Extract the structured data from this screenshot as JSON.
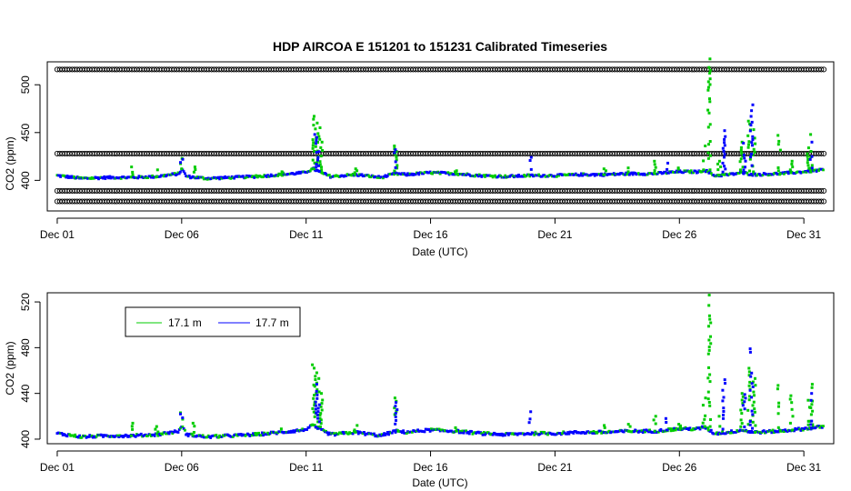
{
  "title": "HDP   AIRCOA  E   151201  to  151231   Calibrated Timeseries",
  "colors": {
    "green": "#00cc00",
    "blue": "#0000ff",
    "black": "#000000"
  },
  "chart_data": [
    {
      "type": "scatter",
      "xlabel": "Date (UTC)",
      "ylabel": "CO2 (ppm)",
      "x_ticks": [
        "Dec 01",
        "Dec 06",
        "Dec 11",
        "Dec 16",
        "Dec 21",
        "Dec 26",
        "Dec 31"
      ],
      "x_tick_days": [
        1,
        6,
        11,
        16,
        21,
        26,
        31
      ],
      "xlim": [
        0.6,
        32.2
      ],
      "y_ticks": [
        400,
        450,
        500
      ],
      "ylim": [
        368,
        524
      ],
      "reference_levels": [
        516,
        428,
        389,
        378
      ],
      "baseline": [
        [
          1,
          405
        ],
        [
          2,
          402
        ],
        [
          3,
          403
        ],
        [
          4,
          403
        ],
        [
          5,
          404
        ],
        [
          5.9,
          407
        ],
        [
          6,
          412
        ],
        [
          6.2,
          404
        ],
        [
          7,
          402
        ],
        [
          8,
          403
        ],
        [
          9,
          404
        ],
        [
          10,
          406
        ],
        [
          10.9,
          408
        ],
        [
          11.3,
          412
        ],
        [
          11.6,
          408
        ],
        [
          12,
          404
        ],
        [
          13,
          406
        ],
        [
          14,
          403
        ],
        [
          14.6,
          407
        ],
        [
          15,
          406
        ],
        [
          16,
          408
        ],
        [
          17,
          407
        ],
        [
          18,
          405
        ],
        [
          19,
          404
        ],
        [
          20,
          405
        ],
        [
          21,
          405
        ],
        [
          22,
          406
        ],
        [
          23,
          406
        ],
        [
          24,
          407
        ],
        [
          25,
          407
        ],
        [
          26,
          409
        ],
        [
          26.8,
          409
        ],
        [
          27,
          411
        ],
        [
          27.4,
          405
        ],
        [
          28,
          406
        ],
        [
          28.5,
          408
        ],
        [
          29,
          406
        ],
        [
          30,
          407
        ],
        [
          31,
          409
        ],
        [
          31.8,
          411
        ]
      ],
      "spikes_green": [
        [
          4,
          414
        ],
        [
          5,
          411
        ],
        [
          6,
          423
        ],
        [
          6.5,
          414
        ],
        [
          9,
          405
        ],
        [
          10,
          409
        ],
        [
          11.3,
          467
        ],
        [
          11.4,
          460
        ],
        [
          11.5,
          455
        ],
        [
          11.6,
          440
        ],
        [
          13,
          412
        ],
        [
          14.6,
          436
        ],
        [
          17,
          410
        ],
        [
          23,
          412
        ],
        [
          24,
          413
        ],
        [
          25,
          420
        ],
        [
          26,
          413
        ],
        [
          27,
          436
        ],
        [
          27.2,
          527
        ],
        [
          27.6,
          420
        ],
        [
          28.5,
          440
        ],
        [
          28.8,
          462
        ],
        [
          29,
          453
        ],
        [
          30,
          447
        ],
        [
          30.5,
          420
        ],
        [
          31.2,
          434
        ],
        [
          31.3,
          448
        ]
      ],
      "spikes_blue": [
        [
          6,
          422
        ],
        [
          11.4,
          448
        ],
        [
          11.5,
          430
        ],
        [
          14.6,
          432
        ],
        [
          20,
          424
        ],
        [
          25.5,
          418
        ],
        [
          27.8,
          452
        ],
        [
          28.6,
          439
        ],
        [
          28.9,
          479
        ],
        [
          31.3,
          440
        ]
      ]
    },
    {
      "type": "scatter",
      "xlabel": "Date (UTC)",
      "ylabel": "CO2 (ppm)",
      "x_ticks": [
        "Dec 01",
        "Dec 06",
        "Dec 11",
        "Dec 16",
        "Dec 21",
        "Dec 26",
        "Dec 31"
      ],
      "x_tick_days": [
        1,
        6,
        11,
        16,
        21,
        26,
        31
      ],
      "xlim": [
        0.6,
        32.2
      ],
      "y_ticks": [
        400,
        440,
        480,
        520
      ],
      "ylim": [
        396,
        528
      ],
      "legend": {
        "placement": "top-left",
        "entries": [
          {
            "label": "17.1 m",
            "color": "#00cc00"
          },
          {
            "label": "17.7 m",
            "color": "#0000ff"
          }
        ]
      },
      "series": [
        {
          "name": "17.1 m",
          "color": "#00cc00"
        },
        {
          "name": "17.7 m",
          "color": "#0000ff"
        }
      ],
      "baseline": [
        [
          1,
          405
        ],
        [
          2,
          402
        ],
        [
          3,
          403
        ],
        [
          4,
          403
        ],
        [
          5,
          404
        ],
        [
          5.9,
          407
        ],
        [
          6,
          412
        ],
        [
          6.2,
          404
        ],
        [
          7,
          402
        ],
        [
          8,
          403
        ],
        [
          9,
          404
        ],
        [
          10,
          406
        ],
        [
          10.9,
          408
        ],
        [
          11.3,
          412
        ],
        [
          11.6,
          408
        ],
        [
          12,
          404
        ],
        [
          13,
          406
        ],
        [
          14,
          403
        ],
        [
          14.6,
          407
        ],
        [
          15,
          406
        ],
        [
          16,
          408
        ],
        [
          17,
          407
        ],
        [
          18,
          405
        ],
        [
          19,
          404
        ],
        [
          20,
          405
        ],
        [
          21,
          405
        ],
        [
          22,
          406
        ],
        [
          23,
          406
        ],
        [
          24,
          407
        ],
        [
          25,
          407
        ],
        [
          26,
          409
        ],
        [
          26.8,
          409
        ],
        [
          27,
          411
        ],
        [
          27.4,
          405
        ],
        [
          28,
          406
        ],
        [
          28.5,
          408
        ],
        [
          29,
          406
        ],
        [
          30,
          407
        ],
        [
          31,
          409
        ],
        [
          31.8,
          411
        ]
      ],
      "spikes_green": [
        [
          4,
          414
        ],
        [
          5,
          411
        ],
        [
          6,
          423
        ],
        [
          6.5,
          414
        ],
        [
          9,
          405
        ],
        [
          10,
          409
        ],
        [
          11.3,
          465
        ],
        [
          11.4,
          458
        ],
        [
          11.5,
          453
        ],
        [
          11.6,
          440
        ],
        [
          13,
          412
        ],
        [
          14.6,
          436
        ],
        [
          17,
          410
        ],
        [
          23,
          412
        ],
        [
          24,
          413
        ],
        [
          25,
          420
        ],
        [
          26,
          413
        ],
        [
          27,
          436
        ],
        [
          27.2,
          526
        ],
        [
          27.6,
          420
        ],
        [
          28.5,
          440
        ],
        [
          28.8,
          462
        ],
        [
          29,
          453
        ],
        [
          30,
          447
        ],
        [
          30.5,
          438
        ],
        [
          31.2,
          434
        ],
        [
          31.3,
          448
        ]
      ],
      "spikes_blue": [
        [
          6,
          422
        ],
        [
          11.4,
          448
        ],
        [
          11.5,
          430
        ],
        [
          14.6,
          432
        ],
        [
          20,
          424
        ],
        [
          25.5,
          418
        ],
        [
          27.8,
          452
        ],
        [
          28.6,
          439
        ],
        [
          28.9,
          479
        ],
        [
          31.3,
          440
        ]
      ]
    }
  ]
}
